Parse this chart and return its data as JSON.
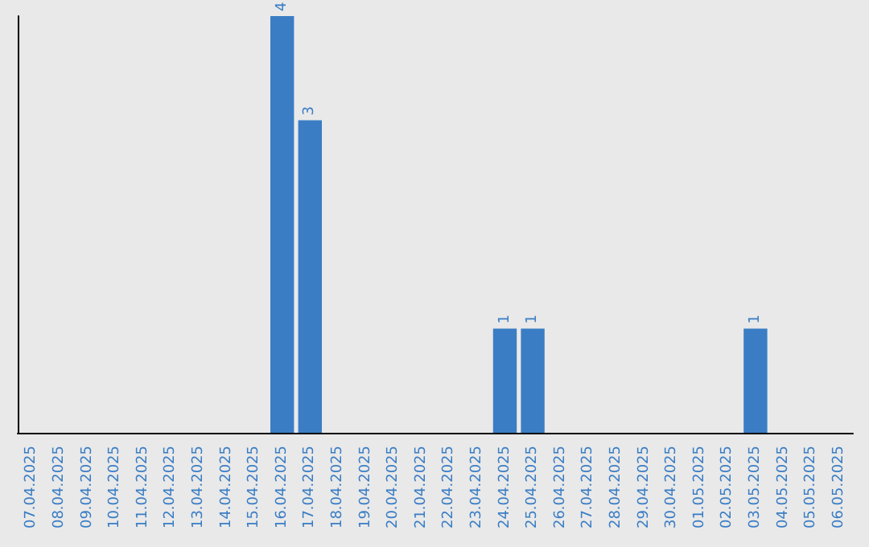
{
  "chart_data": {
    "type": "bar",
    "categories": [
      "07.04.2025",
      "08.04.2025",
      "09.04.2025",
      "10.04.2025",
      "11.04.2025",
      "12.04.2025",
      "13.04.2025",
      "14.04.2025",
      "15.04.2025",
      "16.04.2025",
      "17.04.2025",
      "18.04.2025",
      "19.04.2025",
      "20.04.2025",
      "21.04.2025",
      "22.04.2025",
      "23.04.2025",
      "24.04.2025",
      "25.04.2025",
      "26.04.2025",
      "27.04.2025",
      "28.04.2025",
      "29.04.2025",
      "30.04.2025",
      "01.05.2025",
      "02.05.2025",
      "03.05.2025",
      "04.05.2025",
      "05.05.2025",
      "06.05.2025"
    ],
    "values": [
      0,
      0,
      0,
      0,
      0,
      0,
      0,
      0,
      0,
      4,
      3,
      0,
      0,
      0,
      0,
      0,
      0,
      1,
      1,
      0,
      0,
      0,
      0,
      0,
      0,
      0,
      1,
      0,
      0,
      0
    ],
    "value_labels": [
      null,
      null,
      null,
      null,
      null,
      null,
      null,
      null,
      null,
      "4",
      "3",
      null,
      null,
      null,
      null,
      null,
      null,
      "1",
      "1",
      null,
      null,
      null,
      null,
      null,
      null,
      null,
      "1",
      null,
      null,
      null
    ],
    "color": "#3a7dc4",
    "ylim": [
      0,
      4
    ],
    "grid": false,
    "tick_labels": "x"
  }
}
